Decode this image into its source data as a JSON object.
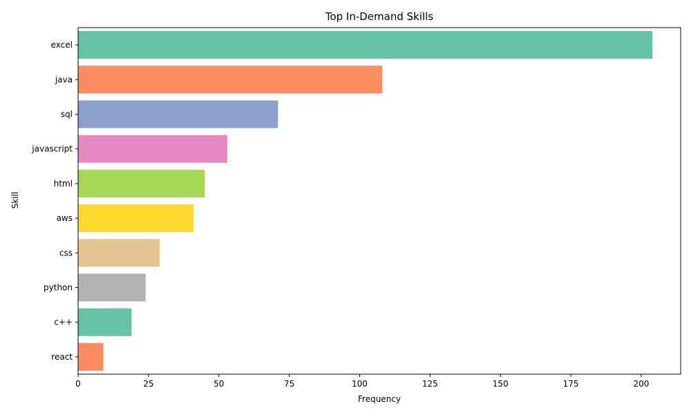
{
  "chart_data": {
    "type": "bar",
    "orientation": "horizontal",
    "title": "Top In-Demand Skills",
    "xlabel": "Frequency",
    "ylabel": "Skill",
    "categories": [
      "excel",
      "java",
      "sql",
      "javascript",
      "html",
      "aws",
      "css",
      "python",
      "c++",
      "react"
    ],
    "values": [
      204,
      108,
      71,
      53,
      45,
      41,
      29,
      24,
      19,
      9
    ],
    "colors": [
      "#66c2a5",
      "#fc8d62",
      "#8da0cb",
      "#e78ac3",
      "#a6d854",
      "#ffd92f",
      "#e5c494",
      "#b3b3b3",
      "#66c2a5",
      "#fc8d62"
    ],
    "xlim": [
      0,
      214
    ],
    "xticks": [
      0,
      25,
      50,
      75,
      100,
      125,
      150,
      175,
      200
    ],
    "grid": false,
    "legend": "none"
  }
}
